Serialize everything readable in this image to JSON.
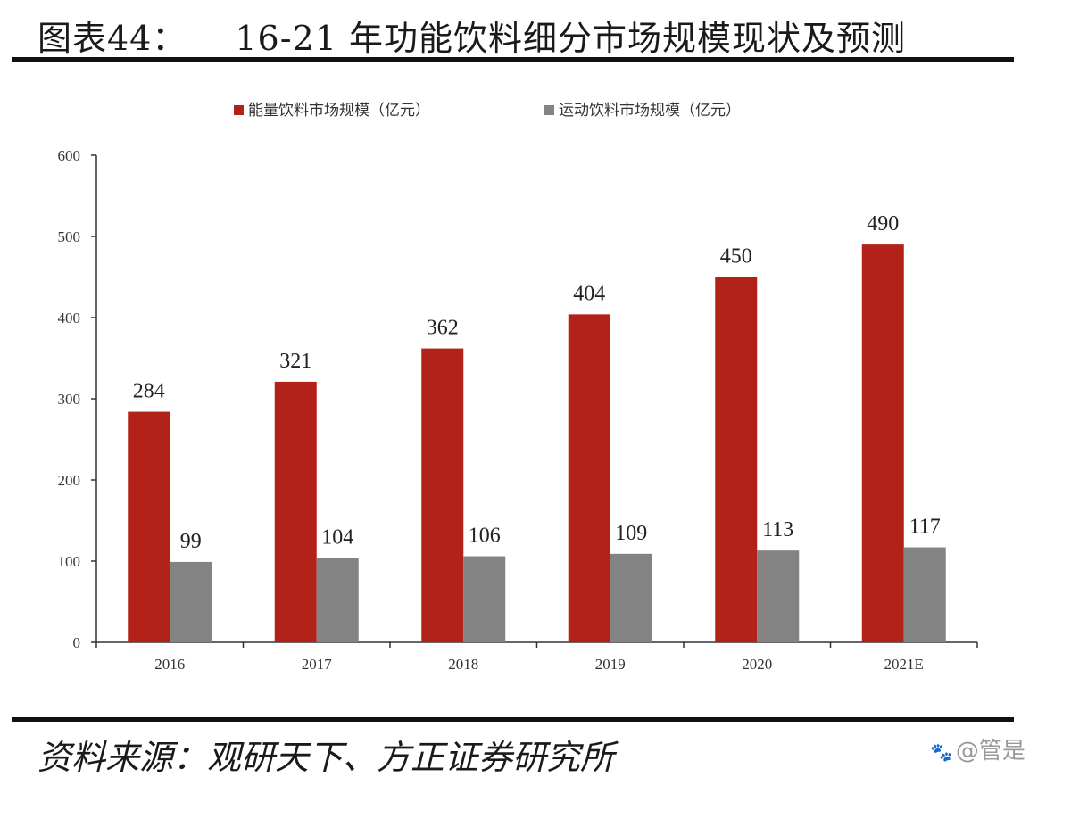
{
  "header": {
    "figure_number": "图表44：",
    "title": "16-21 年功能饮料细分市场规模现状及预测"
  },
  "footer": {
    "source": "资料来源：观研天下、方正证券研究所",
    "watermark": "@管是"
  },
  "colors": {
    "energy": "#b22219",
    "sport": "#838383"
  },
  "chart_data": {
    "type": "bar",
    "title": "",
    "xlabel": "",
    "ylabel": "",
    "categories": [
      "2016",
      "2017",
      "2018",
      "2019",
      "2020",
      "2021E"
    ],
    "series": [
      {
        "name": "能量饮料市场规模（亿元）",
        "values": [
          284,
          321,
          362,
          404,
          450,
          490
        ]
      },
      {
        "name": "运动饮料市场规模（亿元）",
        "values": [
          99,
          104,
          106,
          109,
          113,
          117
        ]
      }
    ],
    "ylim": [
      0,
      600
    ],
    "yticks": [
      0,
      100,
      200,
      300,
      400,
      500,
      600
    ],
    "legend_position": "top-center",
    "grid": false,
    "data_labels": true
  }
}
